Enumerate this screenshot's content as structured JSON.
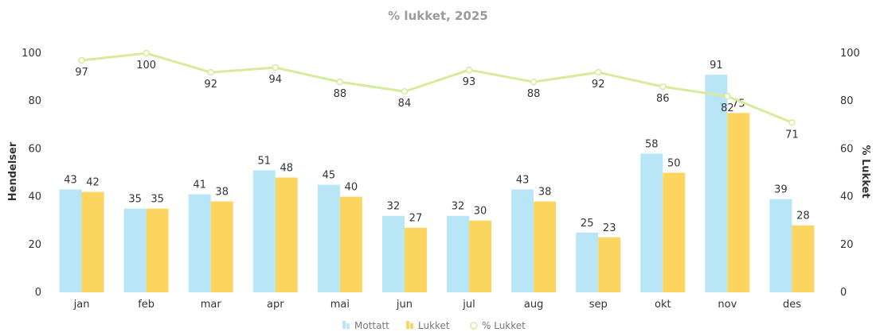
{
  "chart_data": {
    "type": "bar",
    "title": "% lukket, 2025",
    "ylabel_left": "Hendelser",
    "ylabel_right": "% Lukket",
    "ylim_left": [
      0,
      100
    ],
    "ylim_right": [
      0,
      100
    ],
    "yticks": [
      0,
      20,
      40,
      60,
      80,
      100
    ],
    "yticks_right": [
      "0",
      "20",
      "40",
      "60",
      "80",
      "100"
    ],
    "grid": false,
    "legend_position": "bottom",
    "categories": [
      "jan",
      "feb",
      "mar",
      "apr",
      "mai",
      "jun",
      "jul",
      "aug",
      "sep",
      "okt",
      "nov",
      "des"
    ],
    "series": [
      {
        "name": "Mottatt",
        "type": "bar",
        "axis": "left",
        "color": "#b8e6f7",
        "values": [
          43,
          35,
          41,
          51,
          45,
          32,
          32,
          43,
          25,
          58,
          91,
          39
        ]
      },
      {
        "name": "Lukket",
        "type": "bar",
        "axis": "left",
        "color": "#fcd561",
        "values": [
          42,
          35,
          38,
          48,
          40,
          27,
          30,
          38,
          23,
          50,
          75,
          28
        ]
      },
      {
        "name": "% Lukket",
        "type": "line",
        "axis": "right",
        "color": "#d6eb9b",
        "values": [
          97,
          100,
          92,
          94,
          88,
          84,
          93,
          88,
          92,
          86,
          82,
          71
        ]
      }
    ]
  }
}
